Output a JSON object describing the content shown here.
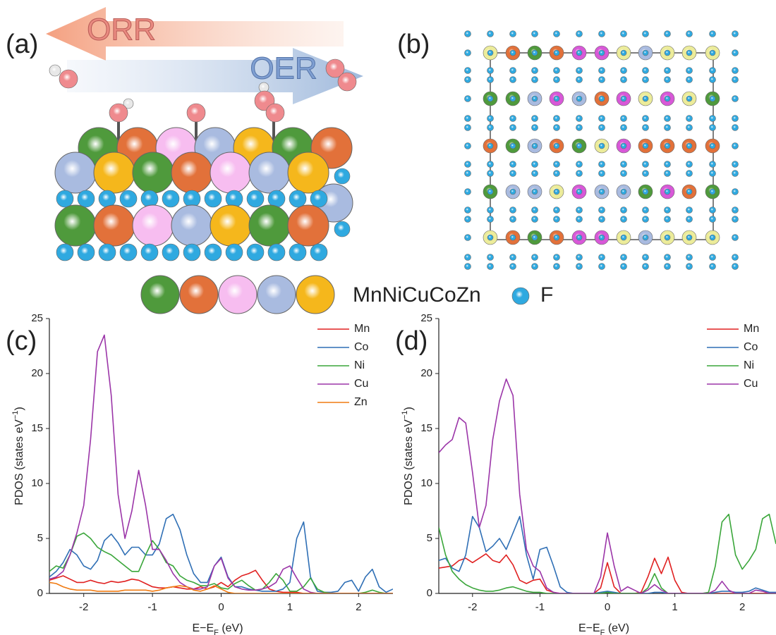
{
  "panels": {
    "a": {
      "label": "(a)",
      "orr": "ORR",
      "oer": "OER"
    },
    "b": {
      "label": "(b)"
    }
  },
  "legend": {
    "alloy": "MnNiCuCoZn",
    "f": "F"
  },
  "chart_data": [
    {
      "type": "line",
      "panel_label": "(c)",
      "xlabel": [
        "E−E",
        "F",
        " (eV)"
      ],
      "ylabel": [
        "PDOS (states eV",
        "−1",
        ")"
      ],
      "x": [
        -2.5,
        -2.4,
        -2.3,
        -2.2,
        -2.1,
        -2.0,
        -1.9,
        -1.8,
        -1.7,
        -1.6,
        -1.5,
        -1.4,
        -1.3,
        -1.2,
        -1.1,
        -1.0,
        -0.9,
        -0.8,
        -0.7,
        -0.6,
        -0.5,
        -0.4,
        -0.3,
        -0.2,
        -0.1,
        0.0,
        0.1,
        0.2,
        0.3,
        0.4,
        0.5,
        0.6,
        0.7,
        0.8,
        0.9,
        1.0,
        1.1,
        1.2,
        1.3,
        1.4,
        1.5,
        1.6,
        1.7,
        1.8,
        1.9,
        2.0,
        2.1,
        2.2,
        2.3,
        2.4,
        2.5
      ],
      "xlim": [
        -2.5,
        2.5
      ],
      "xticks": [
        -2,
        -1,
        0,
        1,
        2
      ],
      "ylim": [
        0,
        25
      ],
      "yticks": [
        0,
        5,
        10,
        15,
        20,
        25
      ],
      "legend": "upper right",
      "series": [
        {
          "name": "Mn",
          "color": "#e02020",
          "values": [
            1.2,
            1.4,
            1.6,
            1.3,
            1.0,
            1.0,
            1.2,
            1.0,
            0.9,
            1.1,
            1.0,
            1.1,
            1.3,
            1.2,
            0.9,
            0.6,
            0.5,
            0.5,
            0.6,
            0.5,
            0.4,
            0.4,
            0.6,
            0.4,
            0.6,
            1.0,
            0.6,
            1.2,
            1.6,
            1.8,
            2.1,
            1.2,
            0.4,
            0.2,
            0.1,
            0.1,
            0.1,
            0,
            0,
            0,
            0,
            0,
            0,
            0,
            0,
            0,
            0,
            0,
            0,
            0,
            0
          ]
        },
        {
          "name": "Co",
          "color": "#2f6fb5",
          "values": [
            1.5,
            2.0,
            2.8,
            4.0,
            3.5,
            2.5,
            2.2,
            3.0,
            4.8,
            5.4,
            4.6,
            3.5,
            4.2,
            4.2,
            3.5,
            3.5,
            4.5,
            6.8,
            7.2,
            5.8,
            3.5,
            1.8,
            1.0,
            1.0,
            2.5,
            3.3,
            1.5,
            0.6,
            0.6,
            0.4,
            0.3,
            0.2,
            0.2,
            0.2,
            0.4,
            1.0,
            5.0,
            6.5,
            1.5,
            0.2,
            0.1,
            0.1,
            0.2,
            1.0,
            1.2,
            0.2,
            1.5,
            2.2,
            0.6,
            0.1,
            0.4
          ]
        },
        {
          "name": "Ni",
          "color": "#3aa63a",
          "values": [
            2.0,
            2.5,
            2.3,
            3.5,
            5.2,
            5.5,
            5.0,
            4.2,
            3.8,
            3.5,
            3.0,
            2.5,
            2.0,
            2.0,
            3.5,
            4.8,
            4.0,
            2.8,
            2.5,
            1.6,
            1.2,
            1.0,
            0.7,
            0.7,
            0.9,
            0.5,
            0.4,
            0.9,
            1.2,
            0.7,
            0.3,
            0.4,
            1.0,
            1.8,
            1.2,
            0.2,
            0.2,
            0.6,
            1.4,
            0.4,
            0.1,
            0,
            0,
            0,
            0,
            0,
            0.1,
            0.3,
            0.1,
            0,
            0
          ]
        },
        {
          "name": "Cu",
          "color": "#9b35a8",
          "values": [
            1.3,
            1.5,
            2.0,
            3.5,
            5.5,
            8.0,
            14.0,
            22.0,
            23.5,
            18.0,
            9.0,
            5.0,
            7.5,
            11.2,
            8.0,
            4.0,
            4.0,
            3.0,
            1.8,
            1.0,
            0.6,
            0.4,
            0.4,
            0.6,
            2.5,
            3.2,
            1.4,
            0.6,
            0.4,
            0.3,
            0.3,
            0.4,
            0.6,
            1.0,
            2.2,
            2.5,
            1.4,
            0.4,
            0.1,
            0,
            0,
            0,
            0,
            0,
            0,
            0,
            0,
            0,
            0,
            0,
            0
          ]
        },
        {
          "name": "Zn",
          "color": "#f07b12",
          "values": [
            1.0,
            0.9,
            0.6,
            0.4,
            0.3,
            0.3,
            0.3,
            0.2,
            0.2,
            0.2,
            0.2,
            0.3,
            0.3,
            0.3,
            0.3,
            0.2,
            0.3,
            0.5,
            0.6,
            0.7,
            0.6,
            0.3,
            0.2,
            0.4,
            0.7,
            0.4,
            0.1,
            0,
            0,
            0,
            0,
            0,
            0,
            0,
            0,
            0,
            0,
            0,
            0,
            0,
            0,
            0,
            0,
            0,
            0,
            0,
            0,
            0,
            0,
            0,
            0
          ]
        }
      ]
    },
    {
      "type": "line",
      "panel_label": "(d)",
      "xlabel": [
        "E−E",
        "F",
        " (eV)"
      ],
      "ylabel": [
        "PDOS (states eV",
        "−1",
        ")"
      ],
      "x": [
        -2.5,
        -2.4,
        -2.3,
        -2.2,
        -2.1,
        -2.0,
        -1.9,
        -1.8,
        -1.7,
        -1.6,
        -1.5,
        -1.4,
        -1.3,
        -1.2,
        -1.1,
        -1.0,
        -0.9,
        -0.8,
        -0.7,
        -0.6,
        -0.5,
        -0.4,
        -0.3,
        -0.2,
        -0.1,
        0.0,
        0.1,
        0.2,
        0.3,
        0.4,
        0.5,
        0.6,
        0.7,
        0.8,
        0.9,
        1.0,
        1.1,
        1.2,
        1.3,
        1.4,
        1.5,
        1.6,
        1.7,
        1.8,
        1.9,
        2.0,
        2.1,
        2.2,
        2.3,
        2.4,
        2.5
      ],
      "xlim": [
        -2.5,
        2.5
      ],
      "xticks": [
        -2,
        -1,
        0,
        1,
        2
      ],
      "ylim": [
        0,
        25
      ],
      "yticks": [
        0,
        5,
        10,
        15,
        20,
        25
      ],
      "legend": "upper right",
      "series": [
        {
          "name": "Mn",
          "color": "#e02020",
          "values": [
            2.3,
            2.4,
            2.5,
            3.0,
            3.2,
            2.8,
            3.2,
            3.6,
            3.0,
            2.8,
            3.5,
            2.6,
            1.2,
            0.9,
            1.2,
            1.3,
            0.3,
            0.1,
            0,
            0,
            0,
            0,
            0,
            0,
            0.5,
            2.8,
            0.6,
            0,
            0,
            0,
            0.1,
            1.5,
            3.2,
            1.8,
            3.3,
            1.2,
            0.1,
            0,
            0,
            0,
            0,
            0,
            0,
            0,
            0,
            0,
            0,
            0,
            0,
            0,
            0
          ]
        },
        {
          "name": "Co",
          "color": "#2f6fb5",
          "values": [
            3.0,
            3.2,
            2.3,
            2.0,
            3.5,
            7.0,
            6.0,
            3.8,
            4.3,
            5.0,
            4.0,
            5.5,
            7.0,
            3.5,
            1.3,
            4.0,
            4.2,
            2.5,
            0.6,
            0.1,
            0,
            0,
            0,
            0,
            0.1,
            0.2,
            0.1,
            0,
            0,
            0,
            0,
            0,
            0.1,
            0.1,
            0,
            0,
            0,
            0,
            0,
            0,
            0,
            0.1,
            0.2,
            0.2,
            0.1,
            0.1,
            0.2,
            0.5,
            0.3,
            0.1,
            0.1
          ]
        },
        {
          "name": "Ni",
          "color": "#3aa63a",
          "values": [
            6.0,
            3.5,
            2.0,
            1.3,
            0.8,
            0.5,
            0.3,
            0.2,
            0.2,
            0.3,
            0.5,
            0.6,
            0.4,
            0.2,
            0.1,
            0.1,
            0,
            0,
            0,
            0,
            0,
            0,
            0,
            0,
            0,
            0.1,
            0,
            0,
            0,
            0,
            0,
            0.5,
            1.8,
            0.5,
            0,
            0,
            0,
            0,
            0,
            0,
            0.1,
            2.5,
            6.5,
            7.2,
            3.5,
            2.2,
            3.0,
            4.0,
            6.8,
            7.2,
            4.5
          ]
        },
        {
          "name": "Cu",
          "color": "#9b35a8",
          "values": [
            12.8,
            13.5,
            14.0,
            16.0,
            15.5,
            11.0,
            6.0,
            8.0,
            14.0,
            17.5,
            19.5,
            18.0,
            9.0,
            4.0,
            2.5,
            2.0,
            0.5,
            0.1,
            0,
            0,
            0,
            0,
            0,
            0,
            1.5,
            5.5,
            2.5,
            0.2,
            0.6,
            0.3,
            0,
            0.3,
            0.8,
            0.3,
            0,
            0,
            0,
            0,
            0,
            0,
            0,
            0.3,
            1.1,
            0.3,
            0,
            0,
            0,
            0.3,
            0.2,
            0,
            0
          ]
        }
      ]
    }
  ]
}
